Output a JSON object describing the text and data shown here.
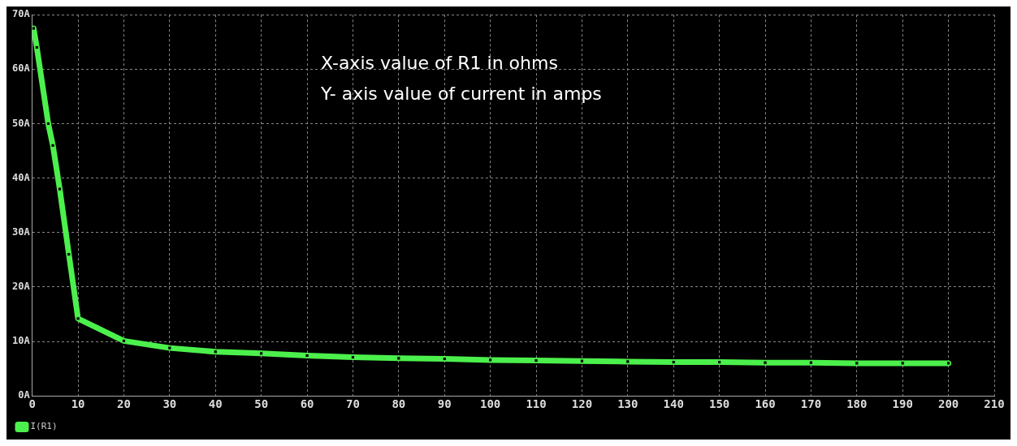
{
  "chart_data": {
    "type": "line",
    "annotations": [
      "X-axis value of R1 in ohms",
      "Y- axis value of current in amps"
    ],
    "x": [
      0.3,
      1,
      3.5,
      4.5,
      6,
      8,
      10,
      20,
      30,
      40,
      50,
      60,
      70,
      80,
      90,
      100,
      110,
      120,
      130,
      140,
      150,
      160,
      170,
      180,
      190,
      200
    ],
    "series": [
      {
        "name": "I(R1)",
        "color": "#4cf04c",
        "values": [
          67.5,
          64,
          50,
          46,
          38,
          26,
          14.2,
          10.1,
          8.8,
          8.1,
          7.8,
          7.4,
          7.1,
          6.9,
          6.8,
          6.6,
          6.5,
          6.4,
          6.3,
          6.2,
          6.2,
          6.1,
          6.1,
          6.0,
          6.0,
          6.0
        ]
      }
    ],
    "xlim": [
      0,
      210
    ],
    "xticks": [
      0,
      10,
      20,
      30,
      40,
      50,
      60,
      70,
      80,
      90,
      100,
      110,
      120,
      130,
      140,
      150,
      160,
      170,
      180,
      190,
      200,
      210
    ],
    "ylim": [
      0,
      70
    ],
    "yticks": [
      {
        "value": 0,
        "label": "0A"
      },
      {
        "value": 10,
        "label": "10A"
      },
      {
        "value": 20,
        "label": "20A"
      },
      {
        "value": 30,
        "label": "30A"
      },
      {
        "value": 40,
        "label": "40A"
      },
      {
        "value": 50,
        "label": "50A"
      },
      {
        "value": 60,
        "label": "60A"
      },
      {
        "value": 70,
        "label": "70A"
      }
    ],
    "grid": true,
    "legend": "bottom left",
    "marker": "square",
    "line_style": "solid"
  }
}
